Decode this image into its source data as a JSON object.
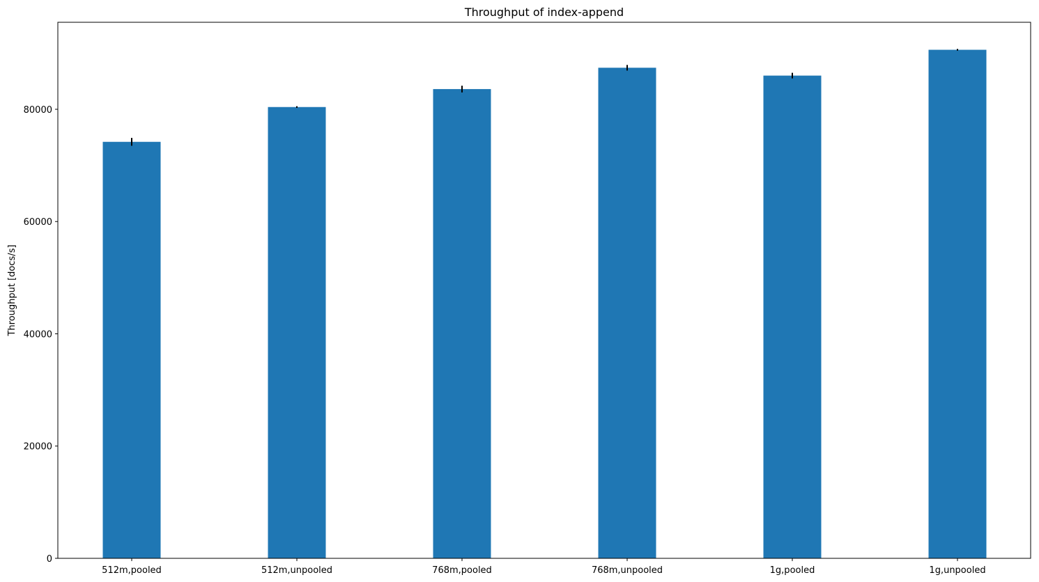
{
  "chart_data": {
    "type": "bar",
    "title": "Throughput of index-append",
    "xlabel": "",
    "ylabel": "Throughput [docs/s]",
    "categories": [
      "512m,pooled",
      "512m,unpooled",
      "768m,pooled",
      "768m,unpooled",
      "1g,pooled",
      "1g,unpooled"
    ],
    "values": [
      74200,
      80400,
      83600,
      87400,
      86000,
      90600
    ],
    "errors": [
      700,
      150,
      600,
      500,
      500,
      150
    ],
    "ylim": [
      0,
      95500
    ],
    "yticks": [
      0,
      20000,
      40000,
      60000,
      80000
    ],
    "ytick_labels": [
      "0",
      "20000",
      "40000",
      "60000",
      "80000"
    ],
    "grid": false,
    "legend": false,
    "colors": {
      "bar": "#1f77b4",
      "error": "#000000",
      "axis": "#000000"
    }
  }
}
